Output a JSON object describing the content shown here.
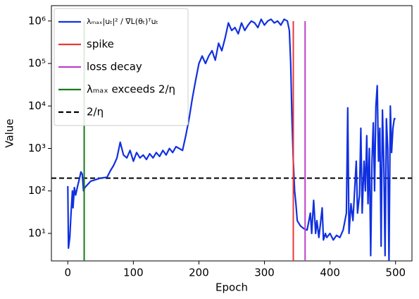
{
  "chart_data": {
    "type": "line",
    "xlabel": "Epoch",
    "ylabel": "Value",
    "xlim": [
      -25,
      525
    ],
    "ylim": [
      2.25,
      2300000
    ],
    "log_y": true,
    "xticks": [
      0,
      100,
      200,
      300,
      400,
      500
    ],
    "yticks": [
      {
        "value": 10,
        "label": "10¹"
      },
      {
        "value": 100,
        "label": "10²"
      },
      {
        "value": 1000,
        "label": "10³"
      },
      {
        "value": 10000,
        "label": "10⁴"
      },
      {
        "value": 100000,
        "label": "10⁵"
      },
      {
        "value": 1000000,
        "label": "10⁶"
      }
    ],
    "legend": "upper left",
    "series": [
      {
        "name": "λₘₐₓ|uₜ|² / ∇L(θₜ)ᵀuₜ",
        "color": "#1030e0",
        "x": [
          0,
          1,
          3,
          5,
          7,
          8,
          10,
          12,
          15,
          18,
          20,
          22,
          24,
          26,
          30,
          35,
          40,
          50,
          60,
          65,
          70,
          75,
          80,
          85,
          90,
          95,
          100,
          105,
          110,
          115,
          120,
          125,
          130,
          135,
          140,
          145,
          150,
          155,
          160,
          165,
          170,
          175,
          180,
          185,
          190,
          195,
          200,
          205,
          210,
          215,
          220,
          225,
          230,
          235,
          240,
          245,
          250,
          255,
          260,
          265,
          270,
          275,
          280,
          285,
          290,
          295,
          300,
          305,
          310,
          315,
          320,
          325,
          330,
          335,
          338,
          340,
          342,
          344,
          346,
          348,
          350,
          355,
          360,
          365,
          370,
          372,
          375,
          378,
          380,
          383,
          385,
          388,
          390,
          393,
          395,
          400,
          405,
          410,
          415,
          420,
          425,
          427,
          429,
          432,
          435,
          440,
          442,
          445,
          447,
          449,
          452,
          454,
          456,
          458,
          460,
          462,
          464,
          466,
          468,
          470,
          472,
          474,
          476,
          478,
          480,
          482,
          484,
          486,
          488,
          490,
          492,
          494,
          496,
          498,
          500
        ],
        "values": [
          130,
          4.5,
          8,
          30,
          100,
          40,
          120,
          80,
          130,
          200,
          280,
          250,
          100,
          120,
          140,
          170,
          180,
          200,
          210,
          300,
          400,
          600,
          1400,
          700,
          600,
          900,
          500,
          800,
          600,
          700,
          550,
          750,
          600,
          800,
          650,
          900,
          700,
          1000,
          800,
          1100,
          1000,
          900,
          2000,
          5000,
          15000,
          40000,
          100000,
          150000,
          100000,
          150000,
          200000,
          120000,
          300000,
          200000,
          400000,
          900000,
          600000,
          700000,
          500000,
          900000,
          600000,
          800000,
          1000000,
          900000,
          700000,
          1100000,
          800000,
          1000000,
          1100000,
          900000,
          1000000,
          800000,
          1100000,
          1000000,
          600000,
          100000,
          5000,
          500,
          100,
          50,
          20,
          15,
          13,
          12,
          30,
          10,
          60,
          10,
          20,
          8,
          15,
          40,
          7,
          10,
          8,
          10,
          7,
          9,
          8,
          12,
          30,
          9000,
          10,
          50,
          20,
          500,
          30,
          80,
          3000,
          30,
          500,
          100,
          2000,
          50,
          1000,
          3,
          500,
          4000,
          100,
          10000,
          30000,
          500,
          3000,
          5,
          8000,
          500,
          3,
          5000,
          1000,
          2,
          10000,
          800,
          3000,
          5000,
          5000
        ]
      }
    ],
    "vlines": [
      {
        "name": "spike",
        "color": "#e8393a",
        "x": 344
      },
      {
        "name": "loss decay",
        "color": "#c040c8",
        "x": 362
      },
      {
        "name": "λₘₐₓ exceeds 2/η",
        "color": "#1a7a1a",
        "x": 25
      }
    ],
    "hlines": [
      {
        "name": "2/η",
        "color": "#000000",
        "y": 200,
        "dashed": true
      }
    ]
  }
}
